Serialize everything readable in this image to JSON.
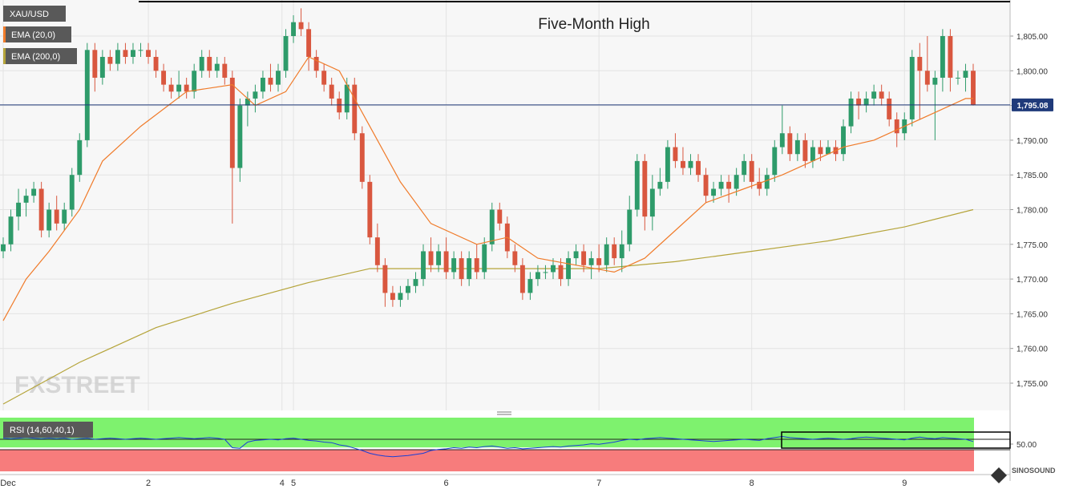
{
  "symbol": "XAU/USD",
  "indicators": {
    "ema_fast_label": "EMA (20,0)",
    "ema_slow_label": "EMA (200,0)",
    "rsi_label": "RSI (14,60,40,1)"
  },
  "annotation": "Five-Month High",
  "current_price_label": "1,795.08",
  "watermark": "FXSTREET",
  "corner_logo_text": "SINOSOUND",
  "colors": {
    "background": "#f7f7f7",
    "grid": "#e3e3e3",
    "bull": "#2e9b6a",
    "bear": "#d9573f",
    "ema_fast": "#f07b2a",
    "ema_slow": "#b5a43a",
    "price_line": "#1f3a7a",
    "rsi_line": "#1a3fd6",
    "rsi_upper_zone": "#7ef26e",
    "rsi_lower_zone": "#f77c7c",
    "label_bg": "#595959"
  },
  "chart_data": {
    "type": "candlestick",
    "title": "Five-Month High",
    "ylim": [
      1750,
      1810
    ],
    "yticks": [
      1755,
      1760,
      1765,
      1770,
      1775,
      1780,
      1785,
      1790,
      1795,
      1800,
      1805
    ],
    "ytick_labels": [
      "1,755.00",
      "1,760.00",
      "1,765.00",
      "1,770.00",
      "1,775.00",
      "1,780.00",
      "1,785.00",
      "1,790.00",
      "1,795.00",
      "1,800.00",
      "1,805.00"
    ],
    "x_labels": [
      {
        "label": "Dec",
        "index": 0
      },
      {
        "label": "2",
        "index": 19
      },
      {
        "label": "4",
        "index": 36.5
      },
      {
        "label": "5",
        "index": 38
      },
      {
        "label": "6",
        "index": 58
      },
      {
        "label": "7",
        "index": 78
      },
      {
        "label": "8",
        "index": 98
      },
      {
        "label": "9",
        "index": 118
      }
    ],
    "last_price": 1795.08,
    "candles": [
      [
        1774,
        1776,
        1773,
        1775
      ],
      [
        1775,
        1780,
        1774,
        1779
      ],
      [
        1779,
        1783,
        1777,
        1781
      ],
      [
        1781,
        1783,
        1779,
        1782
      ],
      [
        1782,
        1784,
        1781,
        1783
      ],
      [
        1783,
        1784,
        1776,
        1777
      ],
      [
        1777,
        1781,
        1776,
        1780
      ],
      [
        1780,
        1782,
        1777,
        1778
      ],
      [
        1778,
        1781,
        1777,
        1780
      ],
      [
        1780,
        1786,
        1779,
        1785
      ],
      [
        1785,
        1791,
        1784,
        1790
      ],
      [
        1790,
        1804,
        1789,
        1803
      ],
      [
        1803,
        1804,
        1797,
        1799
      ],
      [
        1799,
        1803,
        1798,
        1802
      ],
      [
        1802,
        1803,
        1800,
        1801
      ],
      [
        1801,
        1804,
        1800,
        1803
      ],
      [
        1803,
        1804,
        1801,
        1802
      ],
      [
        1802,
        1804,
        1801,
        1803
      ],
      [
        1803,
        1804,
        1802,
        1803
      ],
      [
        1803,
        1804,
        1801,
        1802
      ],
      [
        1802,
        1803,
        1799,
        1800
      ],
      [
        1800,
        1801,
        1797,
        1798
      ],
      [
        1798,
        1799,
        1796,
        1797
      ],
      [
        1797,
        1800,
        1796,
        1798
      ],
      [
        1798,
        1799,
        1796,
        1797
      ],
      [
        1797,
        1801,
        1796,
        1800
      ],
      [
        1800,
        1803,
        1799,
        1802
      ],
      [
        1802,
        1803,
        1799,
        1800
      ],
      [
        1800,
        1802,
        1799,
        1801
      ],
      [
        1801,
        1802,
        1798,
        1799
      ],
      [
        1799,
        1800,
        1778,
        1786
      ],
      [
        1786,
        1796,
        1784,
        1795
      ],
      [
        1795,
        1797,
        1792,
        1796
      ],
      [
        1796,
        1798,
        1794,
        1797
      ],
      [
        1797,
        1800,
        1796,
        1799
      ],
      [
        1799,
        1801,
        1797,
        1798
      ],
      [
        1798,
        1801,
        1797,
        1800
      ],
      [
        1800,
        1806,
        1799,
        1805
      ],
      [
        1805,
        1808,
        1804,
        1807
      ],
      [
        1807,
        1809,
        1805,
        1806
      ],
      [
        1806,
        1807,
        1800,
        1802
      ],
      [
        1802,
        1803,
        1799,
        1800
      ],
      [
        1800,
        1801,
        1797,
        1798
      ],
      [
        1798,
        1799,
        1795,
        1796
      ],
      [
        1796,
        1797,
        1793,
        1794
      ],
      [
        1794,
        1799,
        1793,
        1798
      ],
      [
        1798,
        1799,
        1790,
        1791
      ],
      [
        1791,
        1792,
        1783,
        1784
      ],
      [
        1784,
        1785,
        1775,
        1776
      ],
      [
        1776,
        1778,
        1771,
        1772
      ],
      [
        1772,
        1773,
        1766,
        1768
      ],
      [
        1768,
        1769,
        1766,
        1767
      ],
      [
        1767,
        1769,
        1766,
        1768
      ],
      [
        1768,
        1770,
        1767,
        1769
      ],
      [
        1769,
        1771,
        1768,
        1770
      ],
      [
        1770,
        1775,
        1769,
        1774
      ],
      [
        1774,
        1776,
        1771,
        1772
      ],
      [
        1772,
        1775,
        1771,
        1774
      ],
      [
        1774,
        1776,
        1770,
        1771
      ],
      [
        1771,
        1774,
        1770,
        1773
      ],
      [
        1773,
        1774,
        1769,
        1770
      ],
      [
        1770,
        1774,
        1769,
        1773
      ],
      [
        1773,
        1775,
        1770,
        1771
      ],
      [
        1771,
        1776,
        1770,
        1775
      ],
      [
        1775,
        1781,
        1774,
        1780
      ],
      [
        1780,
        1781,
        1777,
        1778
      ],
      [
        1778,
        1779,
        1773,
        1774
      ],
      [
        1774,
        1775,
        1771,
        1772
      ],
      [
        1772,
        1773,
        1767,
        1768
      ],
      [
        1768,
        1771,
        1767,
        1770
      ],
      [
        1770,
        1772,
        1769,
        1771
      ],
      [
        1771,
        1772,
        1770,
        1771
      ],
      [
        1771,
        1773,
        1770,
        1772
      ],
      [
        1772,
        1773,
        1769,
        1770
      ],
      [
        1770,
        1774,
        1769,
        1773
      ],
      [
        1773,
        1775,
        1772,
        1774
      ],
      [
        1774,
        1775,
        1771,
        1772
      ],
      [
        1772,
        1774,
        1770,
        1773
      ],
      [
        1773,
        1775,
        1771,
        1772
      ],
      [
        1772,
        1776,
        1771,
        1775
      ],
      [
        1775,
        1776,
        1772,
        1773
      ],
      [
        1773,
        1777,
        1771,
        1775
      ],
      [
        1775,
        1782,
        1774,
        1780
      ],
      [
        1780,
        1788,
        1779,
        1787
      ],
      [
        1787,
        1788,
        1777,
        1779
      ],
      [
        1779,
        1785,
        1777,
        1783
      ],
      [
        1783,
        1786,
        1782,
        1784
      ],
      [
        1784,
        1790,
        1783,
        1789
      ],
      [
        1789,
        1791,
        1786,
        1787
      ],
      [
        1787,
        1789,
        1785,
        1786
      ],
      [
        1786,
        1788,
        1785,
        1787
      ],
      [
        1787,
        1788,
        1784,
        1785
      ],
      [
        1785,
        1786,
        1781,
        1782
      ],
      [
        1782,
        1784,
        1781,
        1783
      ],
      [
        1783,
        1785,
        1782,
        1784
      ],
      [
        1784,
        1785,
        1781,
        1783
      ],
      [
        1783,
        1786,
        1782,
        1785
      ],
      [
        1785,
        1788,
        1784,
        1787
      ],
      [
        1787,
        1788,
        1783,
        1784
      ],
      [
        1784,
        1786,
        1782,
        1783
      ],
      [
        1783,
        1786,
        1782,
        1785
      ],
      [
        1785,
        1790,
        1784,
        1789
      ],
      [
        1789,
        1795,
        1788,
        1791
      ],
      [
        1791,
        1792,
        1787,
        1788
      ],
      [
        1788,
        1791,
        1787,
        1790
      ],
      [
        1790,
        1791,
        1786,
        1787
      ],
      [
        1787,
        1790,
        1786,
        1789
      ],
      [
        1789,
        1790,
        1787,
        1788
      ],
      [
        1788,
        1790,
        1788,
        1789
      ],
      [
        1789,
        1790,
        1787,
        1788
      ],
      [
        1788,
        1793,
        1787,
        1792
      ],
      [
        1792,
        1797,
        1791,
        1796
      ],
      [
        1796,
        1797,
        1793,
        1795
      ],
      [
        1795,
        1797,
        1794,
        1796
      ],
      [
        1796,
        1798,
        1795,
        1797
      ],
      [
        1797,
        1798,
        1795,
        1796
      ],
      [
        1796,
        1797,
        1792,
        1793
      ],
      [
        1793,
        1794,
        1789,
        1791
      ],
      [
        1791,
        1794,
        1790,
        1793
      ],
      [
        1793,
        1803,
        1792,
        1802
      ],
      [
        1802,
        1804,
        1793,
        1800
      ],
      [
        1800,
        1805,
        1797,
        1798
      ],
      [
        1798,
        1800,
        1790,
        1799
      ],
      [
        1799,
        1806,
        1797,
        1805
      ],
      [
        1805,
        1806,
        1797,
        1799
      ],
      [
        1799,
        1800,
        1798,
        1799
      ],
      [
        1799,
        1801,
        1797,
        1800
      ],
      [
        1800,
        1801,
        1795,
        1795.08
      ]
    ],
    "ema_fast_anchors": [
      [
        0,
        1764
      ],
      [
        3,
        1770
      ],
      [
        6,
        1774
      ],
      [
        10,
        1780
      ],
      [
        13,
        1787
      ],
      [
        18,
        1792
      ],
      [
        24,
        1797
      ],
      [
        30,
        1798
      ],
      [
        33,
        1795
      ],
      [
        37,
        1797
      ],
      [
        40,
        1802
      ],
      [
        44,
        1800
      ],
      [
        48,
        1792
      ],
      [
        52,
        1784
      ],
      [
        56,
        1778
      ],
      [
        62,
        1775
      ],
      [
        66,
        1776
      ],
      [
        70,
        1773
      ],
      [
        75,
        1772
      ],
      [
        80,
        1771
      ],
      [
        84,
        1773
      ],
      [
        88,
        1777
      ],
      [
        92,
        1781
      ],
      [
        97,
        1783
      ],
      [
        102,
        1785
      ],
      [
        106,
        1787
      ],
      [
        110,
        1789
      ],
      [
        114,
        1790
      ],
      [
        118,
        1792
      ],
      [
        122,
        1794
      ],
      [
        126,
        1796
      ],
      [
        127,
        1796
      ]
    ],
    "ema_slow_anchors": [
      [
        0,
        1752
      ],
      [
        5,
        1755
      ],
      [
        10,
        1758
      ],
      [
        20,
        1763
      ],
      [
        30,
        1766.5
      ],
      [
        40,
        1769.5
      ],
      [
        48,
        1771.5
      ],
      [
        58,
        1771.5
      ],
      [
        68,
        1771.5
      ],
      [
        78,
        1771.5
      ],
      [
        88,
        1772.5
      ],
      [
        98,
        1774
      ],
      [
        108,
        1775.5
      ],
      [
        118,
        1777.5
      ],
      [
        127,
        1780
      ]
    ],
    "rsi": {
      "ylim": [
        0,
        100
      ],
      "upper": 60,
      "lower": 40,
      "mid_label": "50.00",
      "values": [
        62,
        61,
        62,
        63,
        62,
        61,
        62,
        61,
        62,
        60,
        61,
        62,
        60,
        61,
        62,
        61,
        60,
        61,
        62,
        61,
        60,
        61,
        62,
        63,
        62,
        61,
        62,
        63,
        62,
        60,
        45,
        44,
        55,
        58,
        59,
        60,
        59,
        61,
        62,
        60,
        58,
        57,
        55,
        54,
        50,
        48,
        44,
        40,
        35,
        32,
        30,
        29,
        30,
        31,
        33,
        35,
        40,
        42,
        43,
        45,
        44,
        46,
        45,
        47,
        48,
        46,
        44,
        45,
        43,
        44,
        45,
        46,
        47,
        46,
        48,
        49,
        50,
        52,
        51,
        53,
        55,
        58,
        60,
        59,
        61,
        62,
        63,
        62,
        61,
        60,
        59,
        58,
        57,
        56,
        57,
        58,
        59,
        60,
        59,
        58,
        61,
        63,
        65,
        63,
        62,
        61,
        60,
        61,
        62,
        61,
        60,
        61,
        63,
        64,
        63,
        62,
        61,
        60,
        59,
        62,
        64,
        62,
        61,
        63,
        62,
        61,
        60,
        56
      ]
    }
  }
}
